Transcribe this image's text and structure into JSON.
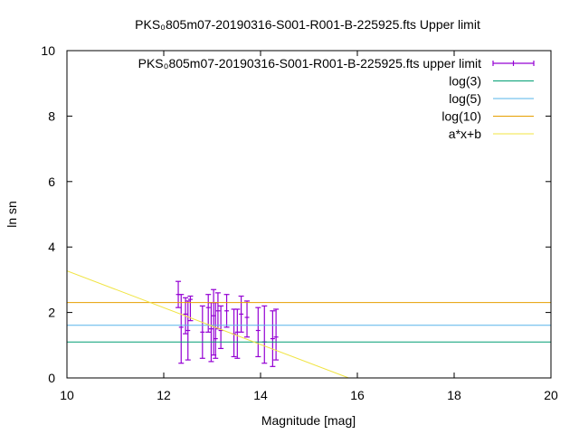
{
  "chart_data": {
    "type": "scatter",
    "title": "PKS₀805m07-20190316-S001-R001-B-225925.fts Upper limit",
    "xlabel": "Magnitude [mag]",
    "ylabel": "ln sn",
    "xlim": [
      10,
      20
    ],
    "ylim": [
      0,
      10
    ],
    "x_ticks": [
      "10",
      "12",
      "14",
      "16",
      "18",
      "20"
    ],
    "y_ticks": [
      "0",
      "2",
      "4",
      "6",
      "8",
      "10"
    ],
    "grid": false,
    "legend_position": "top-right",
    "legend": [
      {
        "label": "PKS₀805m07-20190316-S001-R001-B-225925.fts upper limit",
        "style": "errorbar",
        "color": "#9400d3"
      },
      {
        "label": "log(3)",
        "style": "line",
        "color": "#009e73"
      },
      {
        "label": "log(5)",
        "style": "line",
        "color": "#56b4e9"
      },
      {
        "label": "log(10)",
        "style": "line",
        "color": "#e69f00"
      },
      {
        "label": "a*x+b",
        "style": "line",
        "color": "#f0e442"
      }
    ],
    "series": [
      {
        "name": "PKS₀805m07-20190316-S001-R001-B-225925.fts upper limit",
        "type": "errorbar",
        "color": "#9400d3",
        "points": [
          {
            "x": 12.3,
            "y": 2.55,
            "ylow": 2.15,
            "yhigh": 2.95
          },
          {
            "x": 12.36,
            "y": 1.55,
            "ylow": 0.45,
            "yhigh": 2.55
          },
          {
            "x": 12.45,
            "y": 1.95,
            "ylow": 1.35,
            "yhigh": 2.45
          },
          {
            "x": 12.5,
            "y": 1.45,
            "ylow": 0.55,
            "yhigh": 2.35
          },
          {
            "x": 12.55,
            "y": 2.4,
            "ylow": 1.75,
            "yhigh": 2.5
          },
          {
            "x": 12.8,
            "y": 1.4,
            "ylow": 0.6,
            "yhigh": 2.2
          },
          {
            "x": 12.92,
            "y": 2.15,
            "ylow": 1.4,
            "yhigh": 2.55
          },
          {
            "x": 12.98,
            "y": 1.5,
            "ylow": 0.5,
            "yhigh": 2.3
          },
          {
            "x": 13.03,
            "y": 1.9,
            "ylow": 0.7,
            "yhigh": 2.7
          },
          {
            "x": 13.07,
            "y": 1.2,
            "ylow": 0.6,
            "yhigh": 2.3
          },
          {
            "x": 13.12,
            "y": 2.05,
            "ylow": 1.5,
            "yhigh": 2.6
          },
          {
            "x": 13.18,
            "y": 1.45,
            "ylow": 0.9,
            "yhigh": 2.2
          },
          {
            "x": 13.3,
            "y": 2.05,
            "ylow": 1.55,
            "yhigh": 2.55
          },
          {
            "x": 13.45,
            "y": 1.35,
            "ylow": 0.65,
            "yhigh": 2.1
          },
          {
            "x": 13.52,
            "y": 1.4,
            "ylow": 0.6,
            "yhigh": 2.1
          },
          {
            "x": 13.6,
            "y": 1.95,
            "ylow": 1.4,
            "yhigh": 2.5
          },
          {
            "x": 13.72,
            "y": 1.85,
            "ylow": 1.25,
            "yhigh": 2.35
          },
          {
            "x": 13.95,
            "y": 1.45,
            "ylow": 0.65,
            "yhigh": 2.15
          },
          {
            "x": 14.08,
            "y": 1.1,
            "ylow": 0.45,
            "yhigh": 2.2
          },
          {
            "x": 14.25,
            "y": 1.2,
            "ylow": 0.35,
            "yhigh": 2.05
          },
          {
            "x": 14.32,
            "y": 1.25,
            "ylow": 0.55,
            "yhigh": 2.1
          }
        ]
      },
      {
        "name": "log(3)",
        "type": "hline",
        "y": 1.0986,
        "color": "#009e73"
      },
      {
        "name": "log(5)",
        "type": "hline",
        "y": 1.6094,
        "color": "#56b4e9"
      },
      {
        "name": "log(10)",
        "type": "hline",
        "y": 2.3026,
        "color": "#e69f00"
      },
      {
        "name": "a*x+b",
        "type": "line",
        "points": [
          [
            10,
            3.27
          ],
          [
            15.82,
            0
          ]
        ],
        "color": "#f0e442"
      }
    ]
  }
}
